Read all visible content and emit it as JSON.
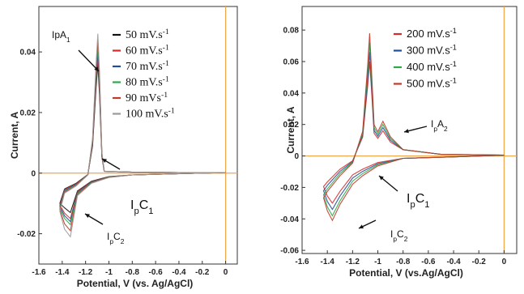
{
  "chart_data": [
    {
      "type": "line",
      "xlabel": "Potential, V (vs. Ag/AgCl)",
      "ylabel": "Current, A",
      "xlim": [
        -1.6,
        0.1
      ],
      "ylim": [
        -0.03,
        0.055
      ],
      "xticks": [
        "-1.6",
        "-1.4",
        "-1.2",
        "-1",
        "-0.8",
        "-0.6",
        "-0.4",
        "-0.2",
        "0"
      ],
      "yticks": [
        "0.04",
        "0.02",
        "0",
        "-0.02"
      ],
      "legend_position": "top-right",
      "annotations": [
        {
          "text": "IpA",
          "sub": "1",
          "x": -1.09,
          "y": 0.045
        },
        {
          "text": "I",
          "sub": "p",
          "text2": "C",
          "sub2": "1",
          "x": -1.0,
          "y": -0.001
        },
        {
          "text": "I",
          "sub": "p",
          "text2": "C",
          "sub2": "2",
          "x": -1.28,
          "y": -0.019
        }
      ],
      "series": [
        {
          "name": "50 mV.s⁻¹",
          "color": "#111111",
          "anodic_peak": 0.036,
          "peak1": -0.0095,
          "peak2": -0.013
        },
        {
          "name": "60 mV.s⁻¹",
          "color": "#d62b2b",
          "anodic_peak": 0.038,
          "peak1": -0.01,
          "peak2": -0.015
        },
        {
          "name": "70 mV.s⁻¹",
          "color": "#1f4e9a",
          "anodic_peak": 0.04,
          "peak1": -0.0105,
          "peak2": -0.016
        },
        {
          "name": "80 mV.s⁻¹",
          "color": "#2ea84a",
          "anodic_peak": 0.042,
          "peak1": -0.011,
          "peak2": -0.017
        },
        {
          "name": "90 mVs⁻¹",
          "color": "#c0392b",
          "anodic_peak": 0.044,
          "peak1": -0.0115,
          "peak2": -0.019
        },
        {
          "name": "100 mV.s⁻¹",
          "color": "#9a9a9a",
          "anodic_peak": 0.046,
          "peak1": -0.012,
          "peak2": -0.021
        }
      ]
    },
    {
      "type": "line",
      "xlabel": "Potential, V (vs.Ag/AgCl)",
      "ylabel": "Current, A",
      "xlim": [
        -1.6,
        0.1
      ],
      "ylim": [
        -0.062,
        0.095
      ],
      "xticks": [
        "-1.6",
        "-1.4",
        "-1.2",
        "-1",
        "-0.8",
        "-0.6",
        "-0.4",
        "-0.2",
        "0"
      ],
      "yticks": [
        "0.08",
        "0.06",
        "0.04",
        "0.02",
        "0",
        "-0.02",
        "-0.04",
        "-0.06"
      ],
      "legend_position": "top-right",
      "annotations": [
        {
          "text": "I",
          "sub": "p",
          "text2": "A",
          "sub2": "2",
          "x": -0.92,
          "y": 0.022
        },
        {
          "text": "I",
          "sub": "p",
          "text2": "C",
          "sub2": "1",
          "x": -1.08,
          "y": -0.005
        },
        {
          "text": "I",
          "sub": "p",
          "text2": "C",
          "sub2": "2",
          "x": -1.33,
          "y": -0.037
        }
      ],
      "series": [
        {
          "name": "200 mV.s⁻¹",
          "color": "#d62b2b",
          "anodic_peak": 0.06,
          "anodic_peak2": 0.016,
          "peak1": -0.012,
          "peak2": -0.03
        },
        {
          "name": "300 mV.s⁻¹",
          "color": "#1f4e9a",
          "anodic_peak": 0.066,
          "anodic_peak2": 0.018,
          "peak1": -0.014,
          "peak2": -0.034
        },
        {
          "name": "400 mV.s⁻¹",
          "color": "#2ea84a",
          "anodic_peak": 0.072,
          "anodic_peak2": 0.02,
          "peak1": -0.016,
          "peak2": -0.038
        },
        {
          "name": "500 mV.s⁻¹",
          "color": "#c0392b",
          "anodic_peak": 0.078,
          "anodic_peak2": 0.022,
          "peak1": -0.018,
          "peak2": -0.041
        }
      ]
    }
  ]
}
